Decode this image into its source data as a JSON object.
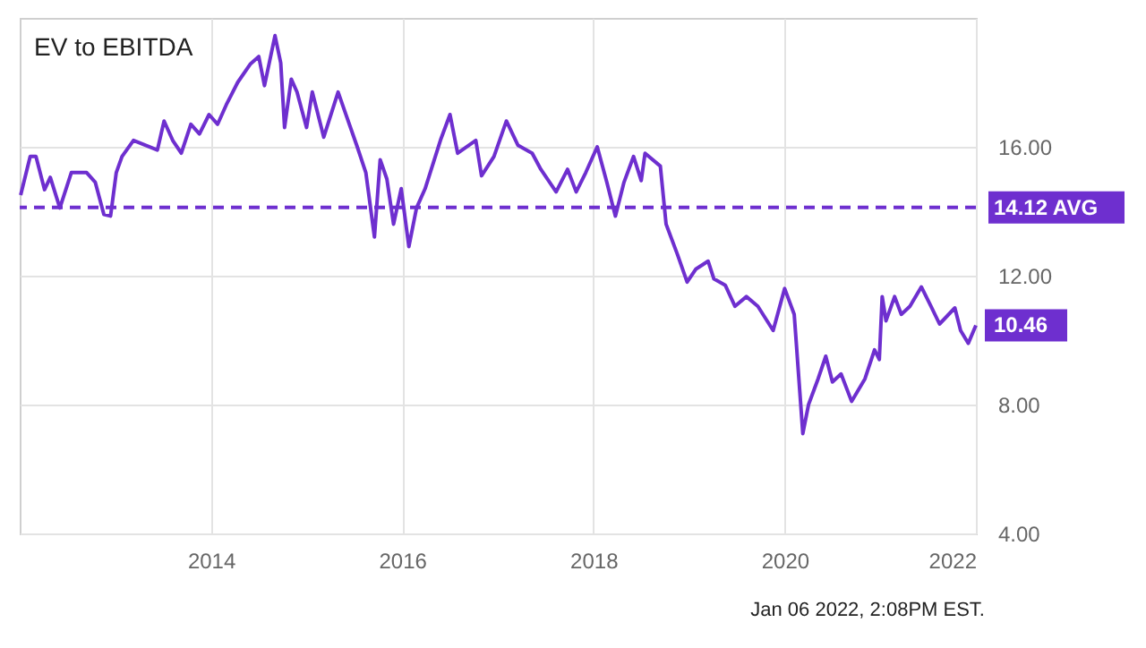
{
  "chart_data": {
    "type": "line",
    "title": "EV to EBITDA",
    "x": [
      2012.01,
      2012.11,
      2012.17,
      2012.26,
      2012.32,
      2012.42,
      2012.54,
      2012.7,
      2012.79,
      2012.88,
      2012.95,
      2013.01,
      2013.07,
      2013.19,
      2013.44,
      2013.51,
      2013.6,
      2013.69,
      2013.79,
      2013.88,
      2013.98,
      2014.07,
      2014.16,
      2014.28,
      2014.41,
      2014.5,
      2014.56,
      2014.67,
      2014.73,
      2014.77,
      2014.84,
      2014.9,
      2015.0,
      2015.06,
      2015.18,
      2015.33,
      2015.4,
      2015.53,
      2015.62,
      2015.71,
      2015.77,
      2015.84,
      2015.91,
      2015.99,
      2016.07,
      2016.15,
      2016.24,
      2016.4,
      2016.5,
      2016.58,
      2016.77,
      2016.83,
      2016.96,
      2017.09,
      2017.21,
      2017.36,
      2017.45,
      2017.61,
      2017.73,
      2017.82,
      2017.92,
      2018.04,
      2018.14,
      2018.23,
      2018.32,
      2018.42,
      2018.5,
      2018.54,
      2018.7,
      2018.76,
      2018.88,
      2018.98,
      2019.07,
      2019.2,
      2019.26,
      2019.38,
      2019.48,
      2019.6,
      2019.72,
      2019.88,
      2020.0,
      2020.1,
      2020.19,
      2020.25,
      2020.35,
      2020.43,
      2020.5,
      2020.59,
      2020.7,
      2020.84,
      2020.94,
      2020.99,
      2021.02,
      2021.06,
      2021.15,
      2021.22,
      2021.31,
      2021.43,
      2021.53,
      2021.62,
      2021.78,
      2021.84,
      2021.92,
      2022.0
    ],
    "series": [
      {
        "color": "#6e2fcf",
        "values": [
          14.5,
          15.7,
          15.7,
          14.67,
          15.05,
          14.1,
          15.2,
          15.2,
          14.9,
          13.9,
          13.85,
          15.2,
          15.7,
          16.2,
          15.9,
          16.8,
          16.2,
          15.8,
          16.7,
          16.4,
          17.0,
          16.7,
          17.3,
          18.0,
          18.56,
          18.8,
          17.9,
          19.45,
          18.6,
          16.6,
          18.1,
          17.7,
          16.6,
          17.7,
          16.3,
          17.7,
          17.1,
          16.0,
          15.2,
          13.2,
          15.6,
          15.0,
          13.6,
          14.7,
          12.9,
          14.1,
          14.7,
          16.2,
          17.0,
          15.8,
          16.2,
          15.1,
          15.7,
          16.8,
          16.05,
          15.8,
          15.3,
          14.6,
          15.3,
          14.6,
          15.2,
          16.0,
          14.9,
          13.85,
          14.9,
          15.7,
          14.95,
          15.8,
          15.4,
          13.6,
          12.65,
          11.8,
          12.2,
          12.45,
          11.9,
          11.7,
          11.05,
          11.35,
          11.05,
          10.3,
          11.6,
          10.8,
          7.1,
          8.0,
          8.8,
          9.5,
          8.7,
          8.95,
          8.1,
          8.8,
          9.7,
          9.4,
          11.35,
          10.6,
          11.35,
          10.8,
          11.05,
          11.65,
          11.05,
          10.5,
          11.0,
          10.3,
          9.9,
          10.46
        ]
      }
    ],
    "xlim": [
      2012,
      2022
    ],
    "xticks": [
      2014,
      2016,
      2018,
      2020,
      2022
    ],
    "ylim": [
      4,
      20
    ],
    "yticks": [
      {
        "value": 4,
        "label": "4.00"
      },
      {
        "value": 8,
        "label": "8.00"
      },
      {
        "value": 12,
        "label": "12.00"
      },
      {
        "value": 16,
        "label": "16.00"
      }
    ],
    "grid": true,
    "line_style": "solid",
    "ref_lines": [
      {
        "axis": "y",
        "value": 14.12,
        "label": "14.12 AVG",
        "color": "#6e2fcf",
        "line_style": "dashed"
      }
    ],
    "annotations": [
      {
        "text": "10.46",
        "x": 2022,
        "y": 10.46
      },
      "Jan 06 2022, 2:08PM EST."
    ]
  }
}
